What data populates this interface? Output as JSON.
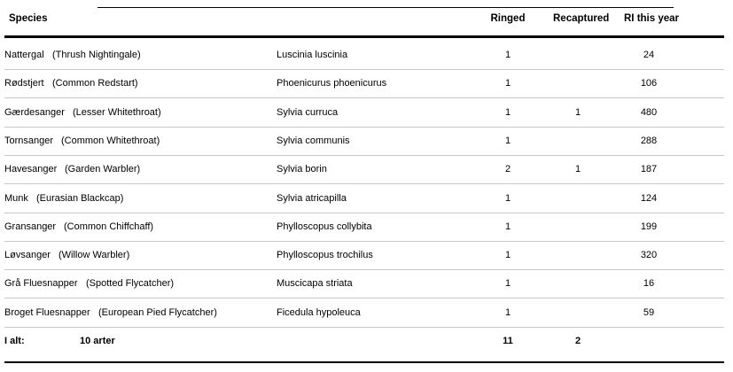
{
  "headers": {
    "species": "Species",
    "ringed": "Ringed",
    "recaptured": "Recaptured",
    "ri": "RI this year"
  },
  "rows": [
    {
      "name": "Nattergal",
      "english": "(Thrush Nightingale)",
      "latin": "Luscinia luscinia",
      "ringed": "1",
      "recaptured": "",
      "ri": "24"
    },
    {
      "name": "Rødstjert",
      "english": "(Common Redstart)",
      "latin": "Phoenicurus phoenicurus",
      "ringed": "1",
      "recaptured": "",
      "ri": "106"
    },
    {
      "name": "Gærdesanger",
      "english": "(Lesser Whitethroat)",
      "latin": "Sylvia curruca",
      "ringed": "1",
      "recaptured": "1",
      "ri": "480"
    },
    {
      "name": "Tornsanger",
      "english": "(Common Whitethroat)",
      "latin": "Sylvia communis",
      "ringed": "1",
      "recaptured": "",
      "ri": "288"
    },
    {
      "name": "Havesanger",
      "english": "(Garden Warbler)",
      "latin": "Sylvia borin",
      "ringed": "2",
      "recaptured": "1",
      "ri": "187"
    },
    {
      "name": "Munk",
      "english": "(Eurasian Blackcap)",
      "latin": "Sylvia atricapilla",
      "ringed": "1",
      "recaptured": "",
      "ri": "124"
    },
    {
      "name": "Gransanger",
      "english": "(Common Chiffchaff)",
      "latin": "Phylloscopus collybita",
      "ringed": "1",
      "recaptured": "",
      "ri": "199"
    },
    {
      "name": "Løvsanger",
      "english": "(Willow Warbler)",
      "latin": "Phylloscopus trochilus",
      "ringed": "1",
      "recaptured": "",
      "ri": "320"
    },
    {
      "name": "Grå Fluesnapper",
      "english": "(Spotted Flycatcher)",
      "latin": "Muscicapa striata",
      "ringed": "1",
      "recaptured": "",
      "ri": "16"
    },
    {
      "name": "Broget Fluesnapper",
      "english": "(European Pied Flycatcher)",
      "latin": "Ficedula hypoleuca",
      "ringed": "1",
      "recaptured": "",
      "ri": "59"
    }
  ],
  "totals": {
    "label": "I alt:",
    "species_count": "10 arter",
    "ringed": "11",
    "recaptured": "2"
  }
}
